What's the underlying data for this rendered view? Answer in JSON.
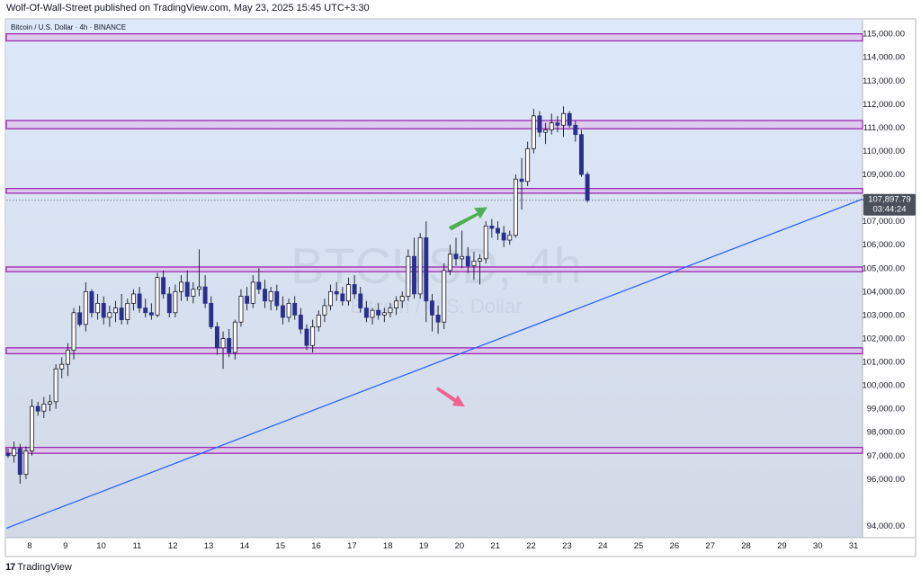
{
  "header": {
    "published": "Wolf-Of-Wall-Street published on TradingView.com, May 23, 2025 15:45 UTC+3:30"
  },
  "footer": {
    "brand": "TradingView",
    "logo_icon": "tradingview-logo-icon"
  },
  "colors": {
    "bg_top": "#dde9fa",
    "bg_bottom": "#d2d9e6",
    "zone_fill": "#dcc6ea",
    "zone_line": "#9c27b0",
    "candle_up": "#ffffff",
    "candle_down": "#2a2f8e",
    "wick": "#131722",
    "trendline": "#2962ff",
    "arrow_up": "#4caf50",
    "arrow_down": "#f06292",
    "price_label_bg": "#4a4f5c"
  },
  "chart_data": {
    "type": "candlestick",
    "symbol_legend": "Bitcoin / U.S. Dollar · 4h · BINANCE",
    "watermark": {
      "symbol": "BTCUSD, 4h",
      "description": "Bitcoin / U.S. Dollar"
    },
    "timeframe": "4h",
    "x_ticks": [
      "8",
      "9",
      "10",
      "11",
      "12",
      "13",
      "14",
      "15",
      "16",
      "17",
      "18",
      "19",
      "20",
      "21",
      "22",
      "23",
      "24",
      "25",
      "26",
      "27",
      "28",
      "29",
      "30",
      "31"
    ],
    "y_ticks": [
      "115,000.00",
      "114,000.00",
      "113,000.00",
      "112,000.00",
      "111,000.00",
      "110,000.00",
      "109,000.00",
      "108,000.00",
      "107,000.00",
      "106,000.00",
      "105,000.00",
      "104,000.00",
      "103,000.00",
      "102,000.00",
      "101,000.00",
      "100,000.00",
      "99,000.00",
      "98,000.00",
      "97,000.00",
      "96,000.00",
      "94,000.00"
    ],
    "ylim": [
      93500,
      115600
    ],
    "xlim_days": [
      7.35,
      31.25
    ],
    "current_price": {
      "value": 107897.79,
      "label": "107,897.79",
      "countdown": "03:44:24"
    },
    "zones": [
      {
        "low": 114700,
        "high": 115000
      },
      {
        "low": 110950,
        "high": 111300
      },
      {
        "low": 108200,
        "high": 108400
      },
      {
        "low": 104850,
        "high": 105050
      },
      {
        "low": 101350,
        "high": 101600
      },
      {
        "low": 97100,
        "high": 97350
      }
    ],
    "trendline": {
      "start": {
        "day": 7.35,
        "price": 93900
      },
      "end": {
        "day": 31.25,
        "price": 107950
      }
    },
    "annotations": [
      {
        "type": "arrow-up",
        "day": 20.35,
        "price": 107300
      },
      {
        "type": "arrow-down",
        "day": 19.85,
        "price": 99400
      }
    ],
    "candles_start_day": 7.4,
    "candle_step_days": 0.1667,
    "candles": [
      {
        "o": 97100,
        "h": 97300,
        "l": 96900,
        "c": 97000
      },
      {
        "o": 97000,
        "h": 97600,
        "l": 96700,
        "c": 97300
      },
      {
        "o": 97300,
        "h": 97500,
        "l": 95800,
        "c": 96200
      },
      {
        "o": 96200,
        "h": 97400,
        "l": 96000,
        "c": 97200
      },
      {
        "o": 97200,
        "h": 99400,
        "l": 97000,
        "c": 99100
      },
      {
        "o": 99100,
        "h": 99300,
        "l": 98700,
        "c": 98900
      },
      {
        "o": 98900,
        "h": 99500,
        "l": 98600,
        "c": 99200
      },
      {
        "o": 99200,
        "h": 99600,
        "l": 98900,
        "c": 99300
      },
      {
        "o": 99300,
        "h": 100900,
        "l": 99000,
        "c": 100700
      },
      {
        "o": 100700,
        "h": 101200,
        "l": 100300,
        "c": 100900
      },
      {
        "o": 100900,
        "h": 101800,
        "l": 100400,
        "c": 101500
      },
      {
        "o": 101500,
        "h": 103300,
        "l": 101100,
        "c": 103100
      },
      {
        "o": 103100,
        "h": 103400,
        "l": 102500,
        "c": 102600
      },
      {
        "o": 102600,
        "h": 104400,
        "l": 102300,
        "c": 104000
      },
      {
        "o": 104000,
        "h": 104100,
        "l": 102900,
        "c": 103100
      },
      {
        "o": 103100,
        "h": 103900,
        "l": 102800,
        "c": 103500
      },
      {
        "o": 103500,
        "h": 103800,
        "l": 102600,
        "c": 102900
      },
      {
        "o": 102900,
        "h": 103400,
        "l": 102500,
        "c": 103100
      },
      {
        "o": 103100,
        "h": 103600,
        "l": 102700,
        "c": 103300
      },
      {
        "o": 103300,
        "h": 103900,
        "l": 102600,
        "c": 102800
      },
      {
        "o": 102800,
        "h": 103700,
        "l": 102600,
        "c": 103500
      },
      {
        "o": 103500,
        "h": 104100,
        "l": 103200,
        "c": 103900
      },
      {
        "o": 103900,
        "h": 104200,
        "l": 103100,
        "c": 103300
      },
      {
        "o": 103300,
        "h": 103700,
        "l": 102900,
        "c": 103100
      },
      {
        "o": 103100,
        "h": 103500,
        "l": 102800,
        "c": 103000
      },
      {
        "o": 103000,
        "h": 104800,
        "l": 102900,
        "c": 104600
      },
      {
        "o": 104600,
        "h": 104900,
        "l": 103700,
        "c": 103900
      },
      {
        "o": 103900,
        "h": 104200,
        "l": 102900,
        "c": 103100
      },
      {
        "o": 103100,
        "h": 104300,
        "l": 102900,
        "c": 104000
      },
      {
        "o": 104000,
        "h": 104700,
        "l": 103600,
        "c": 104400
      },
      {
        "o": 104400,
        "h": 104900,
        "l": 103600,
        "c": 103800
      },
      {
        "o": 103800,
        "h": 104400,
        "l": 103500,
        "c": 104100
      },
      {
        "o": 104100,
        "h": 105800,
        "l": 103800,
        "c": 104200
      },
      {
        "o": 104200,
        "h": 104700,
        "l": 103300,
        "c": 103500
      },
      {
        "o": 103500,
        "h": 103800,
        "l": 102400,
        "c": 102500
      },
      {
        "o": 102500,
        "h": 102700,
        "l": 101300,
        "c": 101600
      },
      {
        "o": 101600,
        "h": 102300,
        "l": 100700,
        "c": 102000
      },
      {
        "o": 102000,
        "h": 102400,
        "l": 101200,
        "c": 101400
      },
      {
        "o": 101400,
        "h": 102800,
        "l": 101100,
        "c": 102700
      },
      {
        "o": 102700,
        "h": 104100,
        "l": 102500,
        "c": 103800
      },
      {
        "o": 103800,
        "h": 104200,
        "l": 103200,
        "c": 103500
      },
      {
        "o": 103500,
        "h": 104700,
        "l": 103300,
        "c": 104400
      },
      {
        "o": 104400,
        "h": 105000,
        "l": 103900,
        "c": 104100
      },
      {
        "o": 104100,
        "h": 104500,
        "l": 103300,
        "c": 103600
      },
      {
        "o": 103600,
        "h": 104200,
        "l": 103200,
        "c": 104000
      },
      {
        "o": 104000,
        "h": 104300,
        "l": 103200,
        "c": 103400
      },
      {
        "o": 103400,
        "h": 103800,
        "l": 102600,
        "c": 102900
      },
      {
        "o": 102900,
        "h": 103700,
        "l": 102700,
        "c": 103500
      },
      {
        "o": 103500,
        "h": 103800,
        "l": 102800,
        "c": 103000
      },
      {
        "o": 103000,
        "h": 103300,
        "l": 102200,
        "c": 102400
      },
      {
        "o": 102400,
        "h": 102600,
        "l": 101500,
        "c": 101700
      },
      {
        "o": 101700,
        "h": 102800,
        "l": 101400,
        "c": 102500
      },
      {
        "o": 102500,
        "h": 103200,
        "l": 102300,
        "c": 103000
      },
      {
        "o": 103000,
        "h": 103700,
        "l": 102700,
        "c": 103400
      },
      {
        "o": 103400,
        "h": 104300,
        "l": 103200,
        "c": 104000
      },
      {
        "o": 104000,
        "h": 104400,
        "l": 103600,
        "c": 103900
      },
      {
        "o": 103900,
        "h": 104200,
        "l": 103400,
        "c": 103600
      },
      {
        "o": 103600,
        "h": 104600,
        "l": 103400,
        "c": 104300
      },
      {
        "o": 104300,
        "h": 104700,
        "l": 103700,
        "c": 103900
      },
      {
        "o": 103900,
        "h": 104200,
        "l": 103100,
        "c": 103300
      },
      {
        "o": 103300,
        "h": 103600,
        "l": 102700,
        "c": 102900
      },
      {
        "o": 102900,
        "h": 103300,
        "l": 102600,
        "c": 103200
      },
      {
        "o": 103200,
        "h": 103500,
        "l": 102800,
        "c": 103000
      },
      {
        "o": 103000,
        "h": 103300,
        "l": 102700,
        "c": 103100
      },
      {
        "o": 103100,
        "h": 103500,
        "l": 102900,
        "c": 103300
      },
      {
        "o": 103300,
        "h": 103800,
        "l": 103000,
        "c": 103600
      },
      {
        "o": 103600,
        "h": 104000,
        "l": 103300,
        "c": 103800
      },
      {
        "o": 103800,
        "h": 105800,
        "l": 103600,
        "c": 105500
      },
      {
        "o": 105500,
        "h": 106300,
        "l": 103700,
        "c": 103900
      },
      {
        "o": 103900,
        "h": 106500,
        "l": 103700,
        "c": 106300
      },
      {
        "o": 106300,
        "h": 107000,
        "l": 102700,
        "c": 103600
      },
      {
        "o": 103600,
        "h": 103900,
        "l": 102300,
        "c": 103000
      },
      {
        "o": 103000,
        "h": 103400,
        "l": 102200,
        "c": 102700
      },
      {
        "o": 102700,
        "h": 105200,
        "l": 102400,
        "c": 104900
      },
      {
        "o": 104900,
        "h": 106000,
        "l": 104700,
        "c": 105600
      },
      {
        "o": 105600,
        "h": 106300,
        "l": 105100,
        "c": 105400
      },
      {
        "o": 105400,
        "h": 106600,
        "l": 105000,
        "c": 105500
      },
      {
        "o": 105500,
        "h": 105900,
        "l": 104800,
        "c": 105100
      },
      {
        "o": 105100,
        "h": 105700,
        "l": 104500,
        "c": 105300
      },
      {
        "o": 105300,
        "h": 105600,
        "l": 104300,
        "c": 105400
      },
      {
        "o": 105400,
        "h": 107000,
        "l": 105200,
        "c": 106800
      },
      {
        "o": 106800,
        "h": 107100,
        "l": 106300,
        "c": 106700
      },
      {
        "o": 106700,
        "h": 107000,
        "l": 106200,
        "c": 106500
      },
      {
        "o": 106500,
        "h": 106800,
        "l": 105900,
        "c": 106200
      },
      {
        "o": 106200,
        "h": 106600,
        "l": 106000,
        "c": 106400
      },
      {
        "o": 106400,
        "h": 109000,
        "l": 106300,
        "c": 108800
      },
      {
        "o": 108800,
        "h": 109700,
        "l": 107500,
        "c": 108700
      },
      {
        "o": 108700,
        "h": 110400,
        "l": 108500,
        "c": 110100
      },
      {
        "o": 110100,
        "h": 111800,
        "l": 109900,
        "c": 111500
      },
      {
        "o": 111500,
        "h": 111700,
        "l": 110600,
        "c": 110800
      },
      {
        "o": 110800,
        "h": 111200,
        "l": 110300,
        "c": 110900
      },
      {
        "o": 110900,
        "h": 111600,
        "l": 110700,
        "c": 111200
      },
      {
        "o": 111200,
        "h": 111500,
        "l": 110800,
        "c": 111100
      },
      {
        "o": 111100,
        "h": 111900,
        "l": 110600,
        "c": 111600
      },
      {
        "o": 111600,
        "h": 111700,
        "l": 111000,
        "c": 111100
      },
      {
        "o": 111100,
        "h": 111300,
        "l": 110400,
        "c": 110700
      },
      {
        "o": 110700,
        "h": 110900,
        "l": 108900,
        "c": 109000
      },
      {
        "o": 109000,
        "h": 109100,
        "l": 107800,
        "c": 107898
      }
    ]
  }
}
